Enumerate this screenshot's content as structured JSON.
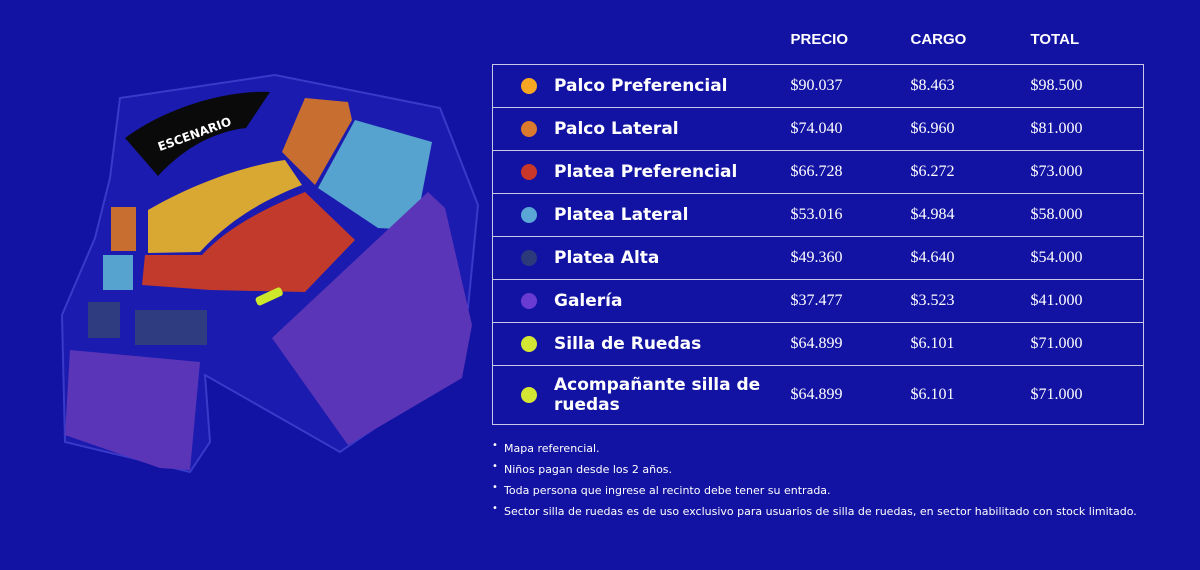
{
  "map": {
    "stage_label": "ESCENARIO",
    "colors": {
      "palco_preferencial": "#d9a832",
      "palco_lateral": "#c96e31",
      "platea_preferencial": "#c23a2b",
      "platea_lateral": "#57a3cf",
      "platea_alta": "#2f3c7f",
      "galeria": "#5b35b8",
      "silla_de_ruedas": "#cde82a"
    }
  },
  "table": {
    "headers": {
      "zone": "",
      "precio": "PRECIO",
      "cargo": "CARGO",
      "total": "TOTAL"
    },
    "rows": [
      {
        "zone": "Palco Preferencial",
        "color": "#f6a623",
        "precio": "$90.037",
        "cargo": "$8.463",
        "total": "$98.500"
      },
      {
        "zone": "Palco Lateral",
        "color": "#d97a2e",
        "precio": "$74.040",
        "cargo": "$6.960",
        "total": "$81.000"
      },
      {
        "zone": "Platea Preferencial",
        "color": "#c8372a",
        "precio": "$66.728",
        "cargo": "$6.272",
        "total": "$73.000"
      },
      {
        "zone": "Platea Lateral",
        "color": "#5aa7d6",
        "precio": "$53.016",
        "cargo": "$4.984",
        "total": "$58.000"
      },
      {
        "zone": "Platea Alta",
        "color": "#2c3a7c",
        "precio": "$49.360",
        "cargo": "$4.640",
        "total": "$54.000"
      },
      {
        "zone": "Galería",
        "color": "#6a3bd2",
        "precio": "$37.477",
        "cargo": "$3.523",
        "total": "$41.000"
      },
      {
        "zone": "Silla de Ruedas",
        "color": "#d3e633",
        "precio": "$64.899",
        "cargo": "$6.101",
        "total": "$71.000"
      },
      {
        "zone": "Acompañante silla de ruedas",
        "color": "#d3e633",
        "precio": "$64.899",
        "cargo": "$6.101",
        "total": "$71.000"
      }
    ]
  },
  "notes": [
    "Mapa referencial.",
    "Niños pagan desde los 2 años.",
    "Toda persona que ingrese al recinto debe tener su entrada.",
    "Sector silla de ruedas es de uso exclusivo para usuarios de silla de ruedas, en sector habilitado con stock limitado."
  ]
}
